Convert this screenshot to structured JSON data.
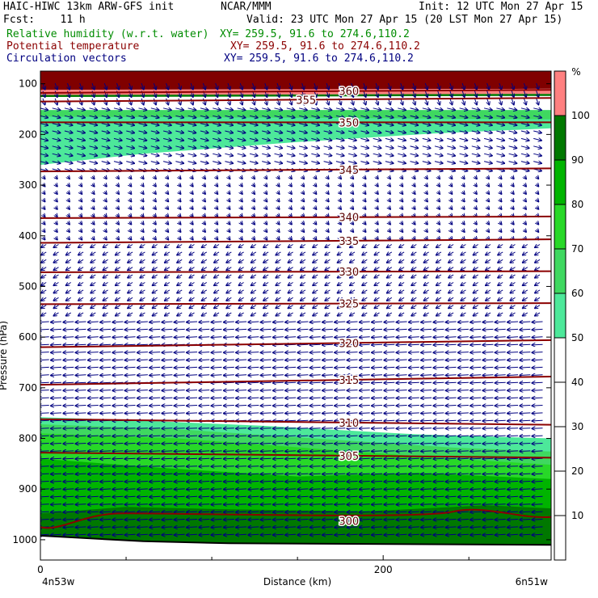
{
  "header": {
    "model": "HAIC-HIWC 13km ARW-GFS init",
    "org": "NCAR/MMM",
    "init": "Init: 12 UTC Mon 27 Apr 15",
    "fcst": "Fcst:    11 h",
    "valid": "Valid: 23 UTC Mon 27 Apr 15 (20 LST Mon 27 Apr 15)",
    "fields": [
      {
        "name": "Relative humidity (w.r.t. water)",
        "xy": "XY= 259.5, 91.6 to 274.6,110.2",
        "color": "#008c00"
      },
      {
        "name": "Potential temperature",
        "xy": "XY= 259.5, 91.6 to 274.6,110.2",
        "color": "#8b0000"
      },
      {
        "name": "Circulation vectors",
        "xy": "XY= 259.5, 91.6 to 274.6,110.2",
        "color": "#000080"
      }
    ]
  },
  "chart_data": {
    "type": "cross-section",
    "xlabel": "Distance (km)",
    "ylabel": "Pressure (hPa)",
    "x_ticks": [
      0,
      200
    ],
    "xlim": [
      0,
      298
    ],
    "x_end_labels": [
      "4n53w",
      "6n51w"
    ],
    "y_ticks": [
      100,
      200,
      300,
      400,
      500,
      600,
      700,
      800,
      900,
      1000
    ],
    "ylim": [
      1040,
      75
    ],
    "relative_humidity": {
      "unit": "%",
      "colorbar_ticks": [
        10,
        20,
        30,
        40,
        50,
        60,
        70,
        80,
        90,
        100
      ],
      "bands": [
        {
          "range": [
            50,
            60
          ],
          "color": "#4de89a"
        },
        {
          "range": [
            60,
            70
          ],
          "color": "#3fd860"
        },
        {
          "range": [
            70,
            80
          ],
          "color": "#28d828"
        },
        {
          "range": [
            80,
            90
          ],
          "color": "#00b400"
        },
        {
          "range": [
            90,
            100
          ],
          "color": "#007800"
        },
        {
          "range": [
            100,
            110
          ],
          "color": "#ff8080"
        }
      ]
    },
    "potential_temperature": {
      "unit": "K",
      "contours": [
        {
          "value": 300,
          "p_start": 975,
          "p_end": 955
        },
        {
          "value": 305,
          "p_start": 828,
          "p_end": 838
        },
        {
          "value": 310,
          "p_start": 762,
          "p_end": 773
        },
        {
          "value": 315,
          "p_start": 694,
          "p_end": 678
        },
        {
          "value": 320,
          "p_start": 620,
          "p_end": 606
        },
        {
          "value": 325,
          "p_start": 535,
          "p_end": 533
        },
        {
          "value": 330,
          "p_start": 472,
          "p_end": 470
        },
        {
          "value": 335,
          "p_start": 414,
          "p_end": 407
        },
        {
          "value": 340,
          "p_start": 365,
          "p_end": 362
        },
        {
          "value": 345,
          "p_start": 273,
          "p_end": 267
        },
        {
          "value": 350,
          "p_start": 176,
          "p_end": 176
        },
        {
          "value": 355,
          "p_start": 135,
          "p_end": 128
        },
        {
          "value": 360,
          "p_start": 118,
          "p_end": 112
        }
      ]
    },
    "circulation_vectors": {
      "color": "#000080",
      "upper_level_direction": "east-southeast",
      "mid_low_level_direction": "west"
    }
  }
}
